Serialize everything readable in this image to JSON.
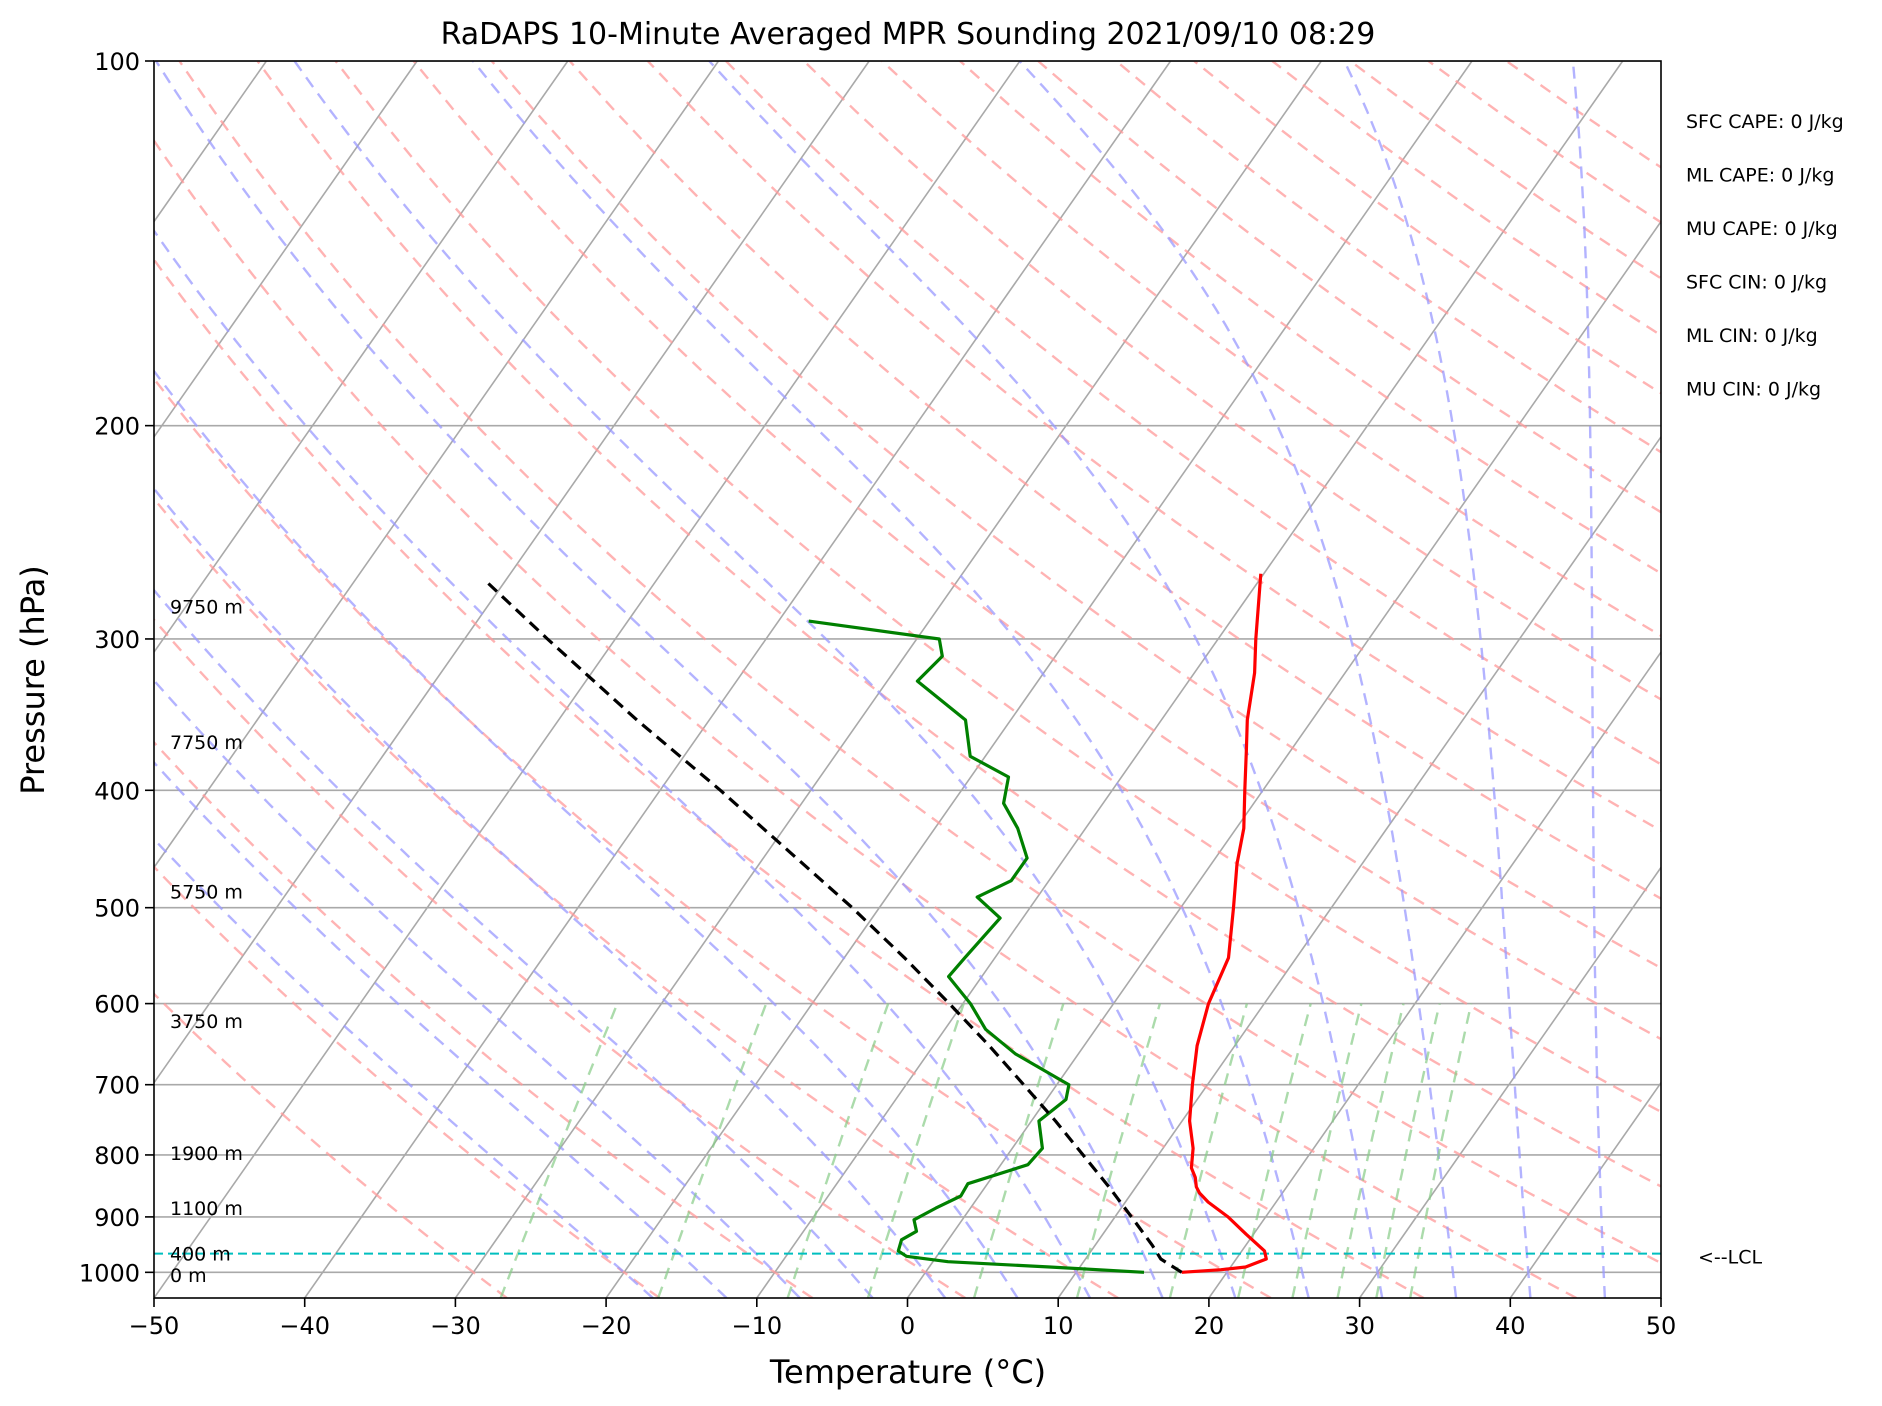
{
  "chart_data": {
    "type": "line",
    "title": "RaDAPS 10-Minute Averaged MPR Sounding 2021/09/10 08:29",
    "xlabel": "Temperature (°C)",
    "ylabel": "Pressure (hPa)",
    "xlim": [
      -50,
      50
    ],
    "ylim": [
      1050,
      100
    ],
    "y_scale": "log",
    "x_ticks": [
      "−50",
      "−40",
      "−30",
      "−20",
      "−10",
      "0",
      "10",
      "20",
      "30",
      "40",
      "50"
    ],
    "y_ticks": [
      "100",
      "200",
      "300",
      "400",
      "500",
      "600",
      "700",
      "800",
      "900",
      "1000"
    ],
    "grid": true,
    "skew": true,
    "series": [
      {
        "color": "#ff0000",
        "points": [
          [
            1000,
            17.0
          ],
          [
            995,
            19.5
          ],
          [
            990,
            21.0
          ],
          [
            975,
            22.0
          ],
          [
            960,
            21.5
          ],
          [
            930,
            19.5
          ],
          [
            900,
            17.5
          ],
          [
            875,
            15.5
          ],
          [
            860,
            14.5
          ],
          [
            850,
            14.0
          ],
          [
            835,
            13.5
          ],
          [
            820,
            12.8
          ],
          [
            790,
            12.0
          ],
          [
            750,
            10.5
          ],
          [
            700,
            9.0
          ],
          [
            650,
            7.5
          ],
          [
            600,
            6.3
          ],
          [
            550,
            5.5
          ],
          [
            500,
            3.5
          ],
          [
            460,
            1.7
          ],
          [
            430,
            0.5
          ],
          [
            400,
            -1.2
          ],
          [
            370,
            -3.0
          ],
          [
            350,
            -4.3
          ],
          [
            320,
            -6.0
          ],
          [
            300,
            -7.5
          ],
          [
            280,
            -9.0
          ],
          [
            265,
            -10.2
          ]
        ]
      },
      {
        "color": "#008000",
        "points": [
          [
            1000,
            14.5
          ],
          [
            990,
            8.0
          ],
          [
            980,
            1.0
          ],
          [
            970,
            -2.0
          ],
          [
            960,
            -2.8
          ],
          [
            940,
            -3.1
          ],
          [
            925,
            -2.5
          ],
          [
            905,
            -3.2
          ],
          [
            885,
            -2.3
          ],
          [
            865,
            -1.2
          ],
          [
            845,
            -1.3
          ],
          [
            815,
            1.8
          ],
          [
            790,
            2.0
          ],
          [
            750,
            0.5
          ],
          [
            720,
            1.3
          ],
          [
            700,
            0.8
          ],
          [
            660,
            -4.2
          ],
          [
            630,
            -7.3
          ],
          [
            600,
            -9.5
          ],
          [
            570,
            -12.2
          ],
          [
            550,
            -12.0
          ],
          [
            510,
            -11.5
          ],
          [
            490,
            -14.0
          ],
          [
            475,
            -12.5
          ],
          [
            455,
            -12.5
          ],
          [
            430,
            -14.5
          ],
          [
            410,
            -16.6
          ],
          [
            390,
            -17.5
          ],
          [
            375,
            -21.0
          ],
          [
            350,
            -23.0
          ],
          [
            325,
            -28.0
          ],
          [
            310,
            -27.5
          ],
          [
            300,
            -28.5
          ],
          [
            290,
            -38.0
          ]
        ]
      },
      {
        "color": "#000000",
        "points": [
          [
            1000,
            17.0
          ],
          [
            975,
            15.0
          ],
          [
            950,
            13.8
          ],
          [
            900,
            11.1
          ],
          [
            850,
            8.2
          ],
          [
            800,
            5.0
          ],
          [
            750,
            1.6
          ],
          [
            700,
            -2.2
          ],
          [
            650,
            -6.3
          ],
          [
            600,
            -10.9
          ],
          [
            550,
            -16.0
          ],
          [
            500,
            -21.8
          ],
          [
            450,
            -28.5
          ],
          [
            400,
            -36.0
          ],
          [
            350,
            -44.8
          ],
          [
            300,
            -54.5
          ],
          [
            270,
            -61.0
          ]
        ]
      }
    ],
    "lcl": {
      "pressure": 965,
      "label": "<--LCL"
    },
    "height_labels": [
      {
        "label": "9750 m",
        "pressure": 282
      },
      {
        "label": "7750 m",
        "pressure": 365
      },
      {
        "label": "5750 m",
        "pressure": 485
      },
      {
        "label": "3750 m",
        "pressure": 620
      },
      {
        "label": "1900 m",
        "pressure": 797
      },
      {
        "label": "1100 m",
        "pressure": 885
      },
      {
        "label": "400 m",
        "pressure": 965
      },
      {
        "label": "0 m",
        "pressure": 1005
      }
    ],
    "annotations": [
      "SFC CAPE: 0 J/kg",
      "ML CAPE: 0 J/kg",
      "MU CAPE: 0 J/kg",
      "SFC CIN: 0 J/kg",
      "ML CIN: 0 J/kg",
      "MU CIN: 0 J/kg"
    ],
    "colors": {
      "isotherm": "#a9a9a9",
      "dry_adiabat": "#ff9999",
      "moist_adiabat": "#9999ff",
      "mixing_ratio": "#88cc88",
      "lcl_line": "#00bfbf"
    }
  }
}
